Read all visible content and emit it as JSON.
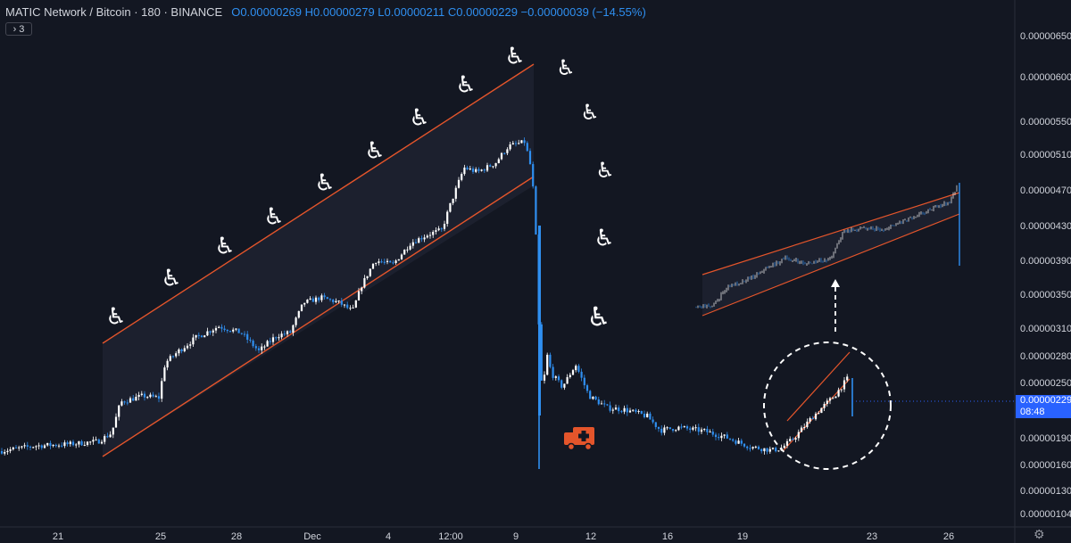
{
  "header": {
    "symbol": "MATIC Network / Bitcoin · 180 · BINANCE",
    "ohlc": "O0.00000269 H0.00000279 L0.00000211 C0.00000229 −0.00000039 (−14.55%)",
    "indicator_toggle": "› 3"
  },
  "price_badge": {
    "price": "0.00000229",
    "countdown": "08:48"
  },
  "colors": {
    "background": "#131722",
    "candle_up": "#ffffff",
    "candle_down": "#2f8ff0",
    "channel": "#e4552b",
    "axis_text": "#d1d4dc",
    "ambulance": "#e4552b"
  },
  "annotations": {
    "wheelchair_icon": "♿",
    "ambulance_icon": "ambulance-icon",
    "circle_highlight": "dashed-circle",
    "arrow_up": "dashed-arrow"
  },
  "chart_data": {
    "type": "candlestick",
    "pair": "MATIC/BTC",
    "interval": "180",
    "exchange": "BINANCE",
    "y_ticks": [
      "0.00000650",
      "0.00000600",
      "0.00000550",
      "0.00000510",
      "0.00000470",
      "0.00000430",
      "0.00000390",
      "0.00000350",
      "0.00000310",
      "0.00000280",
      "0.00000250",
      "0.00000229",
      "0.00000190",
      "0.00000160",
      "0.00000130",
      "0.00000104"
    ],
    "x_ticks": [
      "21",
      "25",
      "28",
      "Dec",
      "4",
      "12:00",
      "9",
      "12",
      "16",
      "19",
      "23",
      "26"
    ],
    "current_close": "0.00000229",
    "price_path": [
      {
        "x": "21",
        "close": 1.75e-06
      },
      {
        "x": "25",
        "close": 2.35e-06
      },
      {
        "x": "28",
        "close": 3e-06
      },
      {
        "x": "Dec",
        "close": 3.8e-06
      },
      {
        "x": "4",
        "close": 3.95e-06
      },
      {
        "x": "12:00",
        "close": 4.7e-06
      },
      {
        "x": "9",
        "close": 5.6e-06
      },
      {
        "x": "12",
        "close": 2.65e-06
      },
      {
        "x": "16",
        "close": 2.05e-06
      },
      {
        "x": "19",
        "close": 1.82e-06
      },
      {
        "x": "23",
        "close": 2.29e-06
      }
    ]
  }
}
